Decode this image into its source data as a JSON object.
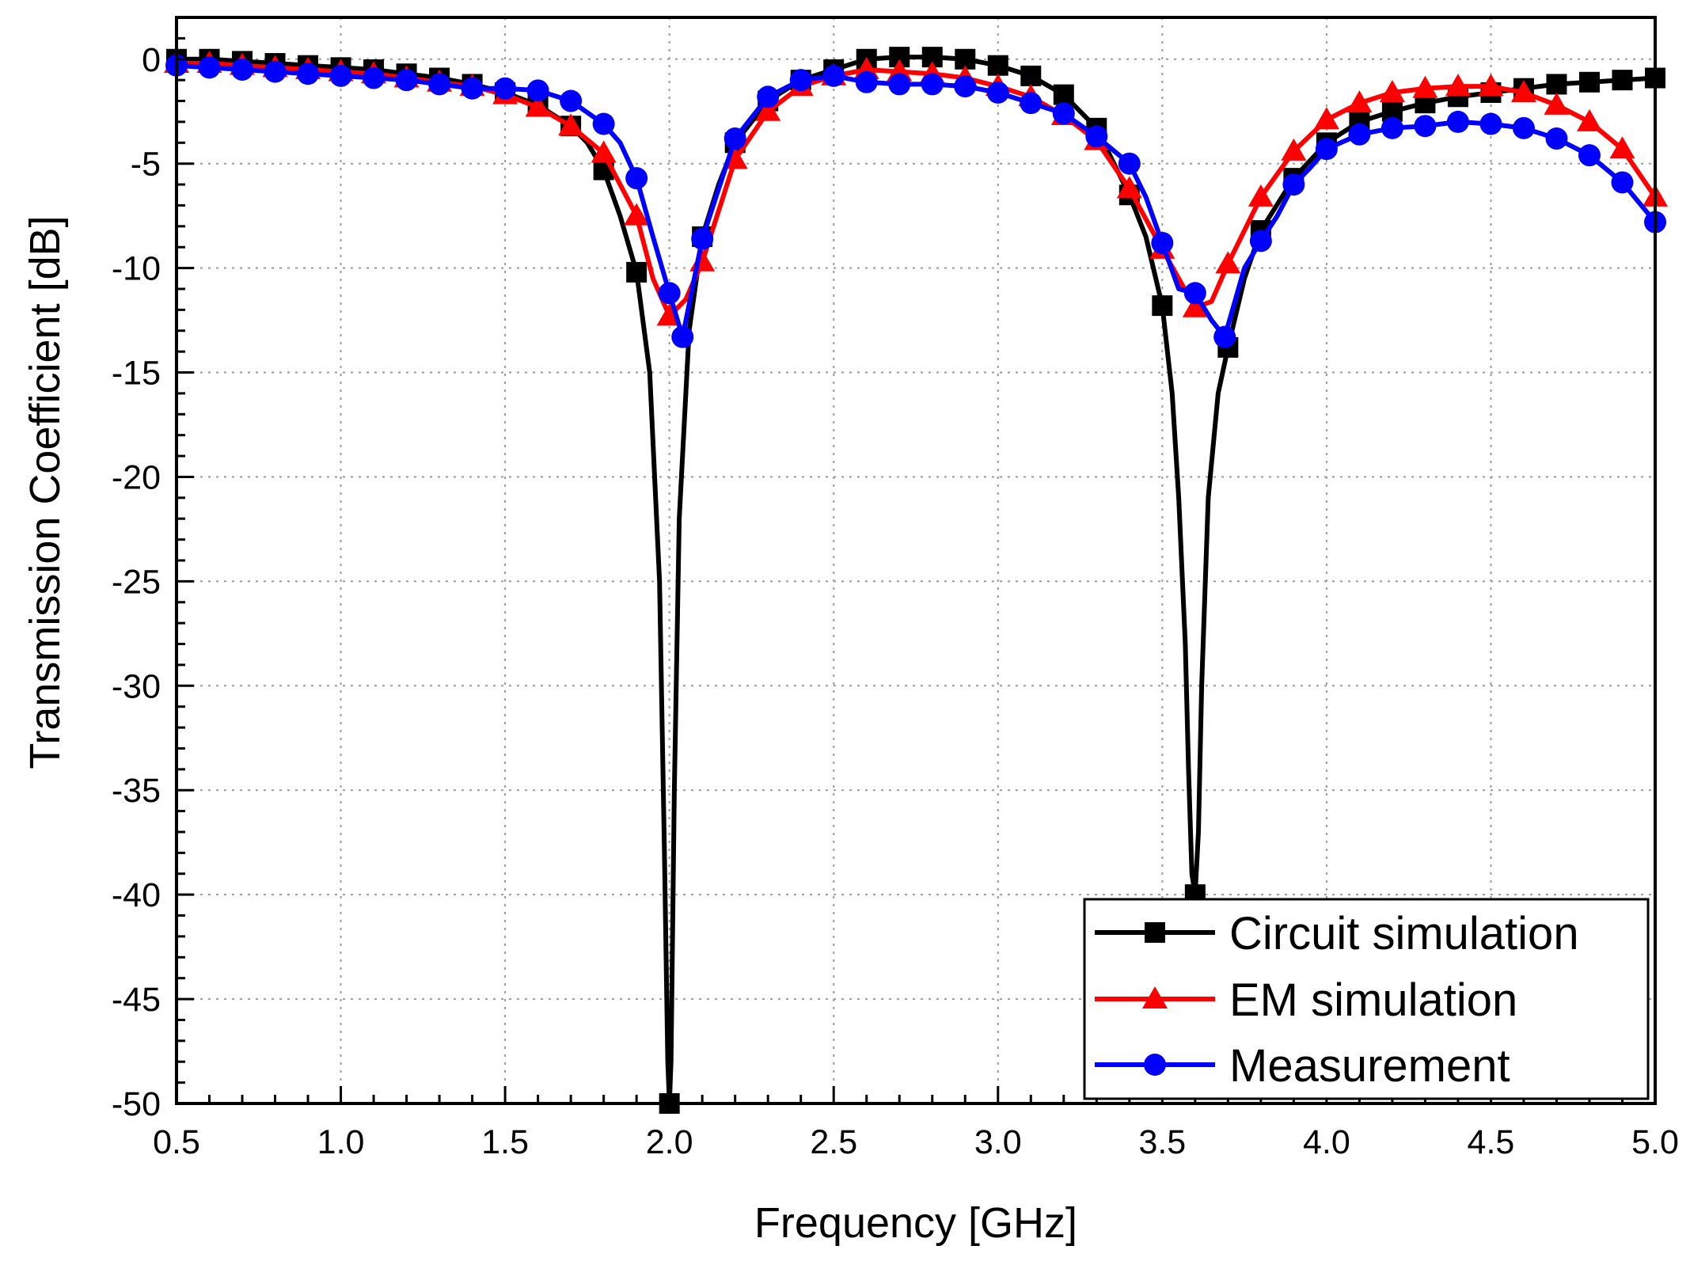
{
  "chart_data": {
    "type": "line",
    "title": "",
    "xlabel": "Frequency [GHz]",
    "ylabel": "Transmission Coefficient [dB]",
    "xlim": [
      0.5,
      5.0
    ],
    "ylim": [
      -50,
      2
    ],
    "xticks": [
      "0.5",
      "1.0",
      "1.5",
      "2.0",
      "2.5",
      "3.0",
      "3.5",
      "4.0",
      "4.5",
      "5.0"
    ],
    "yticks": [
      "0",
      "-5",
      "-10",
      "-15",
      "-20",
      "-25",
      "-30",
      "-35",
      "-40",
      "-45",
      "-50"
    ],
    "xtick_values": [
      0.5,
      1.0,
      1.5,
      2.0,
      2.5,
      3.0,
      3.5,
      4.0,
      4.5,
      5.0
    ],
    "ytick_values": [
      0,
      -5,
      -10,
      -15,
      -20,
      -25,
      -30,
      -35,
      -40,
      -45,
      -50
    ],
    "grid": true,
    "legend_position": "bottom-right",
    "series": [
      {
        "name": "Circuit simulation",
        "color": "#000000",
        "marker": "square",
        "x": [
          0.5,
          0.6,
          0.7,
          0.8,
          0.9,
          1.0,
          1.1,
          1.2,
          1.3,
          1.4,
          1.5,
          1.6,
          1.7,
          1.75,
          1.8,
          1.85,
          1.9,
          1.94,
          1.97,
          1.985,
          1.995,
          2.0,
          2.005,
          2.015,
          2.03,
          2.06,
          2.1,
          2.15,
          2.2,
          2.3,
          2.4,
          2.5,
          2.6,
          2.7,
          2.8,
          2.9,
          3.0,
          3.1,
          3.2,
          3.3,
          3.4,
          3.45,
          3.5,
          3.53,
          3.55,
          3.57,
          3.58,
          3.59,
          3.6,
          3.61,
          3.62,
          3.64,
          3.67,
          3.7,
          3.75,
          3.8,
          3.9,
          4.0,
          4.1,
          4.2,
          4.3,
          4.4,
          4.5,
          4.6,
          4.7,
          4.8,
          4.9,
          5.0
        ],
        "y": [
          0,
          0,
          -0.1,
          -0.2,
          -0.3,
          -0.4,
          -0.5,
          -0.7,
          -0.9,
          -1.2,
          -1.6,
          -2.2,
          -3.2,
          -4.0,
          -5.3,
          -7.5,
          -10.2,
          -15.0,
          -25.0,
          -38.0,
          -48.0,
          -50.0,
          -48.0,
          -35.0,
          -22.0,
          -13.0,
          -8.5,
          -6.0,
          -4.0,
          -2.0,
          -1.0,
          -0.5,
          0.0,
          0.1,
          0.1,
          0.0,
          -0.3,
          -0.8,
          -1.7,
          -3.3,
          -6.5,
          -8.5,
          -11.8,
          -16.0,
          -21.0,
          -28.0,
          -34.0,
          -39.0,
          -40.0,
          -37.0,
          -30.0,
          -21.0,
          -16.0,
          -13.8,
          -10.5,
          -8.2,
          -5.7,
          -4.0,
          -3.0,
          -2.5,
          -2.1,
          -1.8,
          -1.6,
          -1.4,
          -1.2,
          -1.1,
          -1.0,
          -0.9
        ]
      },
      {
        "name": "EM simulation",
        "color": "#ff0000",
        "marker": "triangle",
        "x": [
          0.5,
          0.6,
          0.7,
          0.8,
          0.9,
          1.0,
          1.1,
          1.2,
          1.3,
          1.4,
          1.5,
          1.6,
          1.7,
          1.8,
          1.9,
          1.95,
          2.0,
          2.05,
          2.1,
          2.2,
          2.3,
          2.4,
          2.5,
          2.6,
          2.7,
          2.8,
          2.9,
          3.0,
          3.1,
          3.2,
          3.3,
          3.4,
          3.5,
          3.6,
          3.65,
          3.7,
          3.8,
          3.9,
          4.0,
          4.1,
          4.2,
          4.3,
          4.4,
          4.5,
          4.6,
          4.7,
          4.8,
          4.9,
          5.0
        ],
        "y": [
          -0.2,
          -0.2,
          -0.3,
          -0.4,
          -0.5,
          -0.6,
          -0.7,
          -0.9,
          -1.1,
          -1.3,
          -1.7,
          -2.3,
          -3.2,
          -4.5,
          -7.5,
          -10.5,
          -12.3,
          -11.5,
          -9.7,
          -4.8,
          -2.5,
          -1.3,
          -0.8,
          -0.5,
          -0.6,
          -0.7,
          -0.9,
          -1.3,
          -1.8,
          -2.7,
          -3.9,
          -6.2,
          -9.1,
          -11.9,
          -11.6,
          -9.8,
          -6.6,
          -4.4,
          -2.9,
          -2.1,
          -1.6,
          -1.4,
          -1.3,
          -1.3,
          -1.6,
          -2.2,
          -3.0,
          -4.3,
          -6.6
        ]
      },
      {
        "name": "Measurement",
        "color": "#0000ff",
        "marker": "circle",
        "x": [
          0.5,
          0.6,
          0.7,
          0.8,
          0.9,
          1.0,
          1.1,
          1.2,
          1.3,
          1.4,
          1.5,
          1.6,
          1.7,
          1.8,
          1.85,
          1.9,
          1.95,
          2.0,
          2.04,
          2.1,
          2.2,
          2.3,
          2.4,
          2.5,
          2.6,
          2.7,
          2.8,
          2.9,
          3.0,
          3.1,
          3.2,
          3.3,
          3.4,
          3.45,
          3.5,
          3.55,
          3.6,
          3.65,
          3.69,
          3.75,
          3.8,
          3.85,
          3.9,
          3.95,
          4.0,
          4.1,
          4.2,
          4.3,
          4.4,
          4.5,
          4.6,
          4.7,
          4.8,
          4.9,
          5.0
        ],
        "y": [
          -0.3,
          -0.4,
          -0.5,
          -0.6,
          -0.7,
          -0.8,
          -0.9,
          -1.0,
          -1.2,
          -1.4,
          -1.4,
          -1.5,
          -2.0,
          -3.1,
          -4.0,
          -5.7,
          -8.5,
          -11.2,
          -13.3,
          -8.6,
          -3.8,
          -1.8,
          -1.0,
          -0.8,
          -1.1,
          -1.2,
          -1.2,
          -1.3,
          -1.6,
          -2.1,
          -2.6,
          -3.7,
          -5.0,
          -6.6,
          -8.8,
          -11.0,
          -11.2,
          -12.5,
          -13.3,
          -10.0,
          -8.7,
          -7.5,
          -6.0,
          -5.2,
          -4.3,
          -3.6,
          -3.3,
          -3.2,
          -3.0,
          -3.1,
          -3.3,
          -3.8,
          -4.6,
          -5.9,
          -7.8
        ]
      }
    ]
  }
}
